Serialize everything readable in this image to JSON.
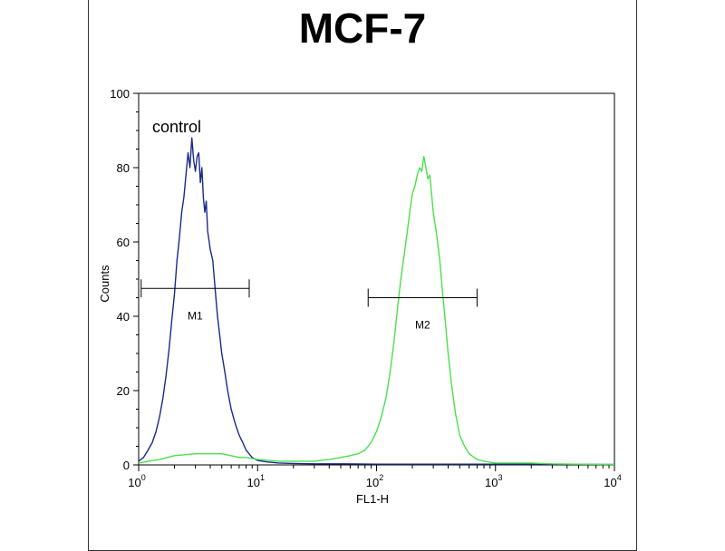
{
  "chart_data": {
    "type": "line",
    "title": "MCF-7",
    "xlabel": "FL1-H",
    "ylabel": "Counts",
    "x_scale": "log",
    "xlim": [
      1,
      10000
    ],
    "ylim": [
      0,
      100
    ],
    "x_ticks": [
      {
        "value": 1,
        "base": "10",
        "exp": "0"
      },
      {
        "value": 10,
        "base": "10",
        "exp": "1"
      },
      {
        "value": 100,
        "base": "10",
        "exp": "2"
      },
      {
        "value": 1000,
        "base": "10",
        "exp": "3"
      },
      {
        "value": 10000,
        "base": "10",
        "exp": "4"
      }
    ],
    "y_ticks": [
      "0",
      "20",
      "40",
      "60",
      "80",
      "100"
    ],
    "annotations": [
      {
        "text": "control",
        "x": 1.3,
        "y": 91
      }
    ],
    "gates": [
      {
        "label": "M1",
        "x_start": 1.05,
        "x_end": 8.5,
        "y": 47.5
      },
      {
        "label": "M2",
        "x_start": 85,
        "x_end": 700,
        "y": 45
      }
    ],
    "series": [
      {
        "color": "#1a2a8c",
        "x": [
          1.0,
          1.1,
          1.2,
          1.3,
          1.4,
          1.5,
          1.6,
          1.7,
          1.8,
          1.9,
          2.0,
          2.1,
          2.2,
          2.3,
          2.4,
          2.5,
          2.6,
          2.7,
          2.8,
          2.9,
          3.0,
          3.1,
          3.2,
          3.3,
          3.4,
          3.5,
          3.6,
          3.7,
          3.8,
          4.0,
          4.2,
          4.4,
          4.6,
          4.8,
          5.0,
          5.3,
          5.6,
          6.0,
          6.5,
          7.0,
          7.5,
          8.0,
          9.0,
          10,
          12,
          15,
          20,
          30,
          50,
          100,
          200,
          500,
          1000,
          3000,
          10000
        ],
        "y": [
          1,
          2,
          4,
          6,
          9,
          13,
          18,
          24,
          31,
          39,
          46,
          55,
          61,
          68,
          72,
          78,
          84,
          80,
          88,
          82,
          79,
          83,
          84,
          76,
          80,
          72,
          68,
          71,
          63,
          58,
          55,
          47,
          40,
          35,
          30,
          25,
          20,
          15,
          11,
          8,
          6,
          4,
          2,
          1.2,
          0.8,
          0.5,
          0.4,
          0.3,
          0.3,
          0.2,
          0.2,
          0.2,
          0.2,
          0.2,
          0.1
        ]
      },
      {
        "color": "#4be04b",
        "x": [
          1.0,
          1.5,
          2.0,
          3.0,
          4.0,
          5.0,
          6.0,
          7.0,
          8.0,
          10,
          15,
          20,
          30,
          40,
          50,
          60,
          70,
          80,
          90,
          100,
          110,
          120,
          130,
          140,
          150,
          160,
          170,
          180,
          190,
          200,
          210,
          220,
          230,
          240,
          250,
          260,
          270,
          280,
          290,
          300,
          320,
          340,
          360,
          380,
          400,
          430,
          460,
          500,
          550,
          600,
          700,
          800,
          1000,
          1500,
          2000,
          3000,
          5000,
          10000
        ],
        "y": [
          0.5,
          1.5,
          2.5,
          3,
          3,
          3,
          2.5,
          2,
          2,
          1.5,
          1,
          1,
          1,
          1.5,
          2,
          2.5,
          3,
          4,
          6,
          9,
          13,
          18,
          25,
          33,
          42,
          50,
          56,
          62,
          68,
          73,
          75,
          78,
          80,
          79,
          83,
          80,
          77,
          78,
          73,
          68,
          62,
          55,
          46,
          38,
          30,
          21,
          14,
          8,
          5,
          3,
          1.5,
          1,
          0.5,
          0.5,
          0.5,
          0.3,
          0.2,
          0.1
        ]
      }
    ]
  }
}
